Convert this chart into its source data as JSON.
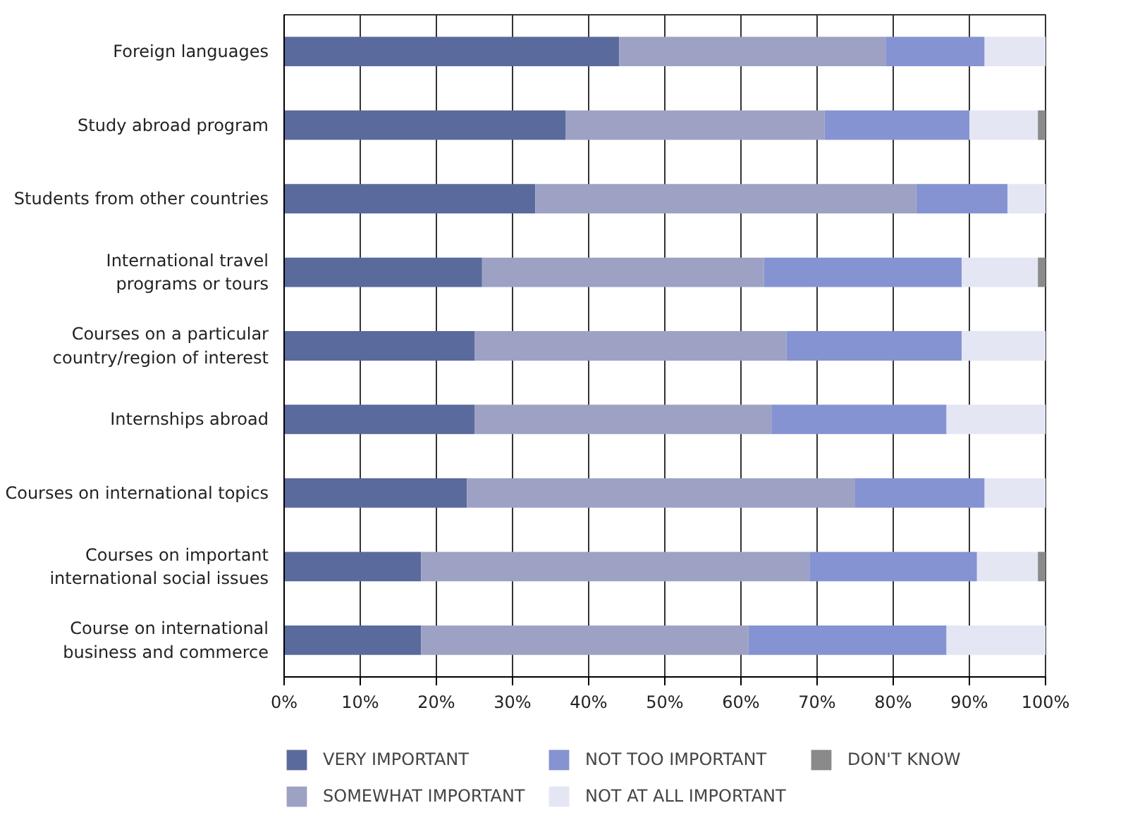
{
  "chart_data": {
    "type": "bar",
    "orientation": "horizontal",
    "stacked": true,
    "categories": [
      "Foreign languages",
      "Study abroad program",
      "Students from other countries",
      "International travel\nprograms or tours",
      "Courses on a particular\ncountry/region of interest",
      "Internships abroad",
      "Courses on international topics",
      "Courses on important\ninternational social issues",
      "Course on international\nbusiness and commerce"
    ],
    "series": [
      {
        "name": "VERY IMPORTANT",
        "color": "#5a6a9c",
        "values": [
          44,
          37,
          33,
          26,
          25,
          25,
          24,
          18,
          18
        ]
      },
      {
        "name": "SOMEWHAT IMPORTANT",
        "color": "#9da2c4",
        "values": [
          35,
          34,
          50,
          37,
          41,
          39,
          51,
          51,
          43
        ]
      },
      {
        "name": "NOT TOO IMPORTANT",
        "color": "#8593d2",
        "values": [
          13,
          19,
          12,
          26,
          23,
          23,
          17,
          22,
          26
        ]
      },
      {
        "name": "NOT AT ALL IMPORTANT",
        "color": "#e4e6f4",
        "values": [
          8,
          9,
          5,
          10,
          11,
          13,
          8,
          8,
          13
        ]
      },
      {
        "name": "DON'T KNOW",
        "color": "#8a8a8a",
        "values": [
          0,
          1,
          0,
          1,
          0,
          0,
          0,
          1,
          0
        ]
      }
    ],
    "xlim": [
      0,
      100
    ],
    "xticks": [
      {
        "value": 0,
        "label": "0%"
      },
      {
        "value": 10,
        "label": "10%"
      },
      {
        "value": 20,
        "label": "20%"
      },
      {
        "value": 30,
        "label": "30%"
      },
      {
        "value": 40,
        "label": "40%"
      },
      {
        "value": 50,
        "label": "50%"
      },
      {
        "value": 60,
        "label": "60%"
      },
      {
        "value": 70,
        "label": "70%"
      },
      {
        "value": 80,
        "label": "80%"
      },
      {
        "value": 90,
        "label": "90%"
      },
      {
        "value": 100,
        "label": "100%"
      }
    ],
    "grid": "x",
    "legend": "bottom"
  }
}
